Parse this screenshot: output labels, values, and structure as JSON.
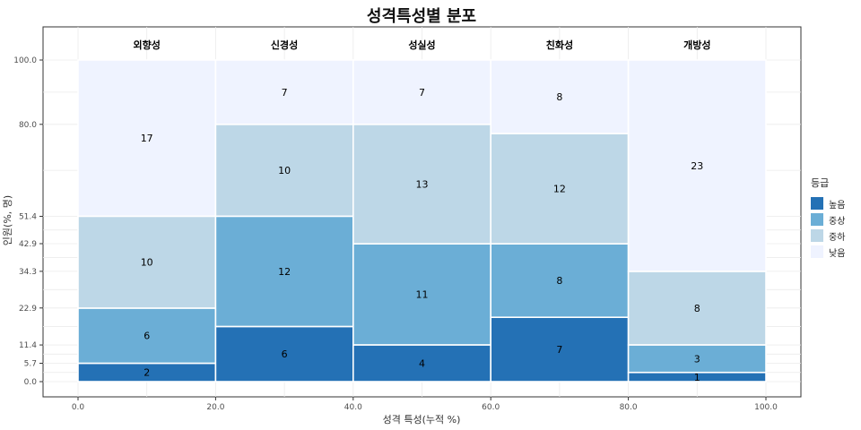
{
  "chart_data": {
    "type": "mosaic",
    "title": "성격특성별 분포",
    "xlabel": "성격 특성(누적 %)",
    "ylabel": "인원(%, 명)",
    "xlim": [
      0,
      100
    ],
    "ylim": [
      0,
      100
    ],
    "x_ticks": [
      "0.0",
      "20.0",
      "40.0",
      "60.0",
      "80.0",
      "100.0"
    ],
    "y_ticks": [
      "0.0",
      "5.7",
      "11.4",
      "22.9",
      "34.3",
      "42.9",
      "51.4",
      "80.0",
      "100.0"
    ],
    "legend_title": "등급",
    "legend_position": "right",
    "categories": [
      "외향성",
      "신경성",
      "성실성",
      "친화성",
      "개방성"
    ],
    "category_widths": [
      20,
      20,
      20,
      20,
      20
    ],
    "series": [
      {
        "name": "높음",
        "color": "#2471b5",
        "values": [
          2,
          6,
          4,
          7,
          1
        ]
      },
      {
        "name": "중상",
        "color": "#6baed6",
        "values": [
          6,
          12,
          11,
          8,
          3
        ]
      },
      {
        "name": "중하",
        "color": "#bdd7e7",
        "values": [
          10,
          10,
          13,
          12,
          8
        ]
      },
      {
        "name": "낮음",
        "color": "#eff3ff",
        "values": [
          17,
          7,
          7,
          8,
          23
        ]
      }
    ]
  }
}
